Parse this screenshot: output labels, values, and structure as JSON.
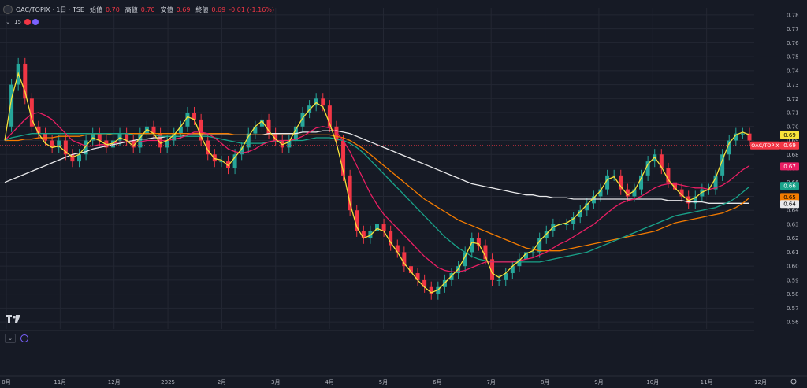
{
  "header": {
    "symbol": "OAC/TOPIX · 1日 · TSE",
    "open_label": "始値",
    "open_value": "0.70",
    "high_label": "高値",
    "high_value": "0.70",
    "low_label": "安値",
    "low_value": "0.69",
    "close_label": "終値",
    "close_value": "0.69",
    "change": "-0.01 (-1.16%)",
    "interval_badge": "15"
  },
  "colors": {
    "background": "#161a25",
    "grid": "#232733",
    "up": "#26a69a",
    "down": "#f23645",
    "ma_yellow": "#f7e23a",
    "ma_pink": "#e91e63",
    "ma_teal": "#19a38a",
    "ma_orange": "#f57c00",
    "ma_white": "#e8e8ea"
  },
  "chart_data": {
    "type": "line",
    "title": "OAC/TOPIX",
    "x_ticks": [
      "0月",
      "11月",
      "12月",
      "2025",
      "2月",
      "3月",
      "4月",
      "5月",
      "6月",
      "7月",
      "8月",
      "9月",
      "10月",
      "11月",
      "12月"
    ],
    "y_ticks": [
      "0.78",
      "0.77",
      "0.76",
      "0.75",
      "0.74",
      "0.73",
      "0.72",
      "0.71",
      "0.70",
      "0.69",
      "0.68",
      "0.67",
      "0.66",
      "0.65",
      "0.64",
      "0.63",
      "0.62",
      "0.61",
      "0.60",
      "0.59",
      "0.58",
      "0.57",
      "0.56"
    ],
    "ylim": [
      0.555,
      0.785
    ],
    "price_labels": [
      {
        "text": "0.69",
        "value": 0.694,
        "color": "#f7e23a",
        "fg": "#000000"
      },
      {
        "text": "OAC/TOPIX",
        "value": 0.6865,
        "color": "#f23645",
        "fg": "#ffffff"
      },
      {
        "text": "0.69",
        "value": 0.6865,
        "color": "#f23645",
        "fg": "#ffffff"
      },
      {
        "text": "0.67",
        "value": 0.6715,
        "color": "#e91e63",
        "fg": "#ffffff"
      },
      {
        "text": "0.66",
        "value": 0.6575,
        "color": "#19a38a",
        "fg": "#ffffff"
      },
      {
        "text": "0.65",
        "value": 0.6495,
        "color": "#f57c00",
        "fg": "#000000"
      },
      {
        "text": "0.64",
        "value": 0.6445,
        "color": "#e8e8ea",
        "fg": "#000000"
      }
    ],
    "close_series": [
      0.7,
      0.73,
      0.745,
      0.72,
      0.7,
      0.695,
      0.69,
      0.685,
      0.69,
      0.68,
      0.675,
      0.68,
      0.69,
      0.695,
      0.69,
      0.685,
      0.69,
      0.695,
      0.69,
      0.685,
      0.695,
      0.7,
      0.695,
      0.685,
      0.69,
      0.695,
      0.7,
      0.71,
      0.705,
      0.69,
      0.68,
      0.675,
      0.675,
      0.67,
      0.68,
      0.685,
      0.695,
      0.7,
      0.705,
      0.695,
      0.69,
      0.685,
      0.69,
      0.7,
      0.71,
      0.715,
      0.72,
      0.715,
      0.7,
      0.69,
      0.665,
      0.64,
      0.625,
      0.62,
      0.625,
      0.63,
      0.625,
      0.615,
      0.61,
      0.6,
      0.595,
      0.59,
      0.585,
      0.58,
      0.585,
      0.59,
      0.595,
      0.6,
      0.61,
      0.62,
      0.615,
      0.605,
      0.59,
      0.59,
      0.595,
      0.6,
      0.605,
      0.61,
      0.61,
      0.62,
      0.625,
      0.63,
      0.63,
      0.63,
      0.635,
      0.64,
      0.645,
      0.65,
      0.655,
      0.665,
      0.665,
      0.655,
      0.65,
      0.655,
      0.665,
      0.675,
      0.68,
      0.67,
      0.66,
      0.655,
      0.65,
      0.645,
      0.65,
      0.655,
      0.655,
      0.665,
      0.68,
      0.69,
      0.695,
      0.695,
      0.69
    ],
    "ma_yellow": [
      0.69,
      0.72,
      0.738,
      0.725,
      0.705,
      0.695,
      0.688,
      0.685,
      0.686,
      0.682,
      0.678,
      0.68,
      0.686,
      0.692,
      0.69,
      0.687,
      0.688,
      0.692,
      0.69,
      0.686,
      0.692,
      0.698,
      0.695,
      0.688,
      0.69,
      0.694,
      0.7,
      0.707,
      0.705,
      0.693,
      0.683,
      0.677,
      0.676,
      0.672,
      0.678,
      0.684,
      0.693,
      0.7,
      0.704,
      0.697,
      0.691,
      0.687,
      0.689,
      0.698,
      0.706,
      0.712,
      0.717,
      0.714,
      0.702,
      0.688,
      0.668,
      0.645,
      0.628,
      0.62,
      0.622,
      0.627,
      0.625,
      0.617,
      0.61,
      0.602,
      0.596,
      0.59,
      0.585,
      0.581,
      0.583,
      0.588,
      0.593,
      0.598,
      0.607,
      0.617,
      0.616,
      0.607,
      0.595,
      0.592,
      0.595,
      0.6,
      0.604,
      0.609,
      0.611,
      0.618,
      0.623,
      0.628,
      0.63,
      0.631,
      0.634,
      0.639,
      0.644,
      0.649,
      0.654,
      0.662,
      0.664,
      0.657,
      0.651,
      0.654,
      0.663,
      0.673,
      0.678,
      0.671,
      0.662,
      0.656,
      0.651,
      0.647,
      0.649,
      0.653,
      0.655,
      0.663,
      0.676,
      0.688,
      0.694,
      0.696,
      0.694
    ],
    "ma_pink": [
      0.69,
      0.695,
      0.7,
      0.705,
      0.709,
      0.71,
      0.708,
      0.705,
      0.7,
      0.695,
      0.69,
      0.688,
      0.686,
      0.686,
      0.687,
      0.687,
      0.688,
      0.689,
      0.689,
      0.689,
      0.689,
      0.69,
      0.69,
      0.69,
      0.69,
      0.691,
      0.692,
      0.694,
      0.696,
      0.696,
      0.695,
      0.692,
      0.688,
      0.684,
      0.682,
      0.681,
      0.682,
      0.684,
      0.687,
      0.689,
      0.69,
      0.69,
      0.69,
      0.691,
      0.693,
      0.696,
      0.699,
      0.7,
      0.699,
      0.696,
      0.69,
      0.682,
      0.672,
      0.662,
      0.652,
      0.644,
      0.637,
      0.632,
      0.627,
      0.622,
      0.617,
      0.612,
      0.607,
      0.603,
      0.599,
      0.597,
      0.596,
      0.596,
      0.597,
      0.599,
      0.601,
      0.603,
      0.603,
      0.603,
      0.603,
      0.603,
      0.604,
      0.605,
      0.606,
      0.608,
      0.61,
      0.613,
      0.616,
      0.618,
      0.621,
      0.624,
      0.627,
      0.63,
      0.634,
      0.638,
      0.642,
      0.645,
      0.647,
      0.648,
      0.65,
      0.653,
      0.656,
      0.658,
      0.659,
      0.659,
      0.658,
      0.657,
      0.656,
      0.656,
      0.655,
      0.656,
      0.658,
      0.661,
      0.665,
      0.669,
      0.672
    ],
    "ma_teal": [
      0.69,
      0.692,
      0.693,
      0.694,
      0.695,
      0.695,
      0.695,
      0.695,
      0.695,
      0.695,
      0.695,
      0.695,
      0.695,
      0.695,
      0.695,
      0.695,
      0.695,
      0.695,
      0.695,
      0.694,
      0.694,
      0.694,
      0.694,
      0.693,
      0.693,
      0.693,
      0.693,
      0.693,
      0.693,
      0.693,
      0.693,
      0.692,
      0.691,
      0.69,
      0.689,
      0.688,
      0.688,
      0.688,
      0.688,
      0.689,
      0.689,
      0.69,
      0.69,
      0.69,
      0.69,
      0.691,
      0.692,
      0.692,
      0.692,
      0.691,
      0.69,
      0.688,
      0.685,
      0.681,
      0.676,
      0.671,
      0.666,
      0.661,
      0.656,
      0.651,
      0.646,
      0.641,
      0.636,
      0.631,
      0.626,
      0.621,
      0.617,
      0.613,
      0.61,
      0.607,
      0.605,
      0.604,
      0.603,
      0.603,
      0.603,
      0.603,
      0.603,
      0.603,
      0.603,
      0.603,
      0.604,
      0.605,
      0.606,
      0.607,
      0.608,
      0.609,
      0.61,
      0.612,
      0.614,
      0.616,
      0.618,
      0.62,
      0.622,
      0.624,
      0.626,
      0.628,
      0.63,
      0.632,
      0.634,
      0.636,
      0.637,
      0.638,
      0.639,
      0.64,
      0.641,
      0.642,
      0.644,
      0.646,
      0.649,
      0.653,
      0.657
    ],
    "ma_orange": [
      0.69,
      0.69,
      0.69,
      0.691,
      0.691,
      0.692,
      0.692,
      0.692,
      0.693,
      0.693,
      0.693,
      0.693,
      0.694,
      0.694,
      0.694,
      0.694,
      0.695,
      0.695,
      0.695,
      0.695,
      0.695,
      0.695,
      0.695,
      0.695,
      0.695,
      0.695,
      0.695,
      0.695,
      0.695,
      0.695,
      0.695,
      0.695,
      0.695,
      0.695,
      0.694,
      0.694,
      0.694,
      0.694,
      0.694,
      0.694,
      0.694,
      0.694,
      0.694,
      0.694,
      0.694,
      0.694,
      0.694,
      0.694,
      0.694,
      0.693,
      0.692,
      0.69,
      0.687,
      0.684,
      0.68,
      0.676,
      0.672,
      0.668,
      0.664,
      0.66,
      0.656,
      0.652,
      0.648,
      0.645,
      0.642,
      0.639,
      0.636,
      0.633,
      0.631,
      0.629,
      0.627,
      0.625,
      0.623,
      0.621,
      0.619,
      0.617,
      0.615,
      0.613,
      0.612,
      0.611,
      0.611,
      0.611,
      0.611,
      0.612,
      0.613,
      0.614,
      0.615,
      0.616,
      0.617,
      0.618,
      0.619,
      0.62,
      0.621,
      0.622,
      0.623,
      0.624,
      0.625,
      0.627,
      0.629,
      0.631,
      0.632,
      0.633,
      0.634,
      0.635,
      0.636,
      0.637,
      0.638,
      0.64,
      0.642,
      0.645,
      0.649
    ],
    "ma_white": [
      0.66,
      0.662,
      0.664,
      0.666,
      0.668,
      0.67,
      0.672,
      0.674,
      0.676,
      0.678,
      0.68,
      0.681,
      0.682,
      0.684,
      0.685,
      0.686,
      0.687,
      0.688,
      0.689,
      0.69,
      0.691,
      0.691,
      0.692,
      0.692,
      0.693,
      0.693,
      0.693,
      0.694,
      0.694,
      0.694,
      0.694,
      0.694,
      0.694,
      0.694,
      0.694,
      0.694,
      0.694,
      0.694,
      0.694,
      0.695,
      0.695,
      0.695,
      0.695,
      0.695,
      0.696,
      0.696,
      0.696,
      0.697,
      0.697,
      0.697,
      0.696,
      0.695,
      0.693,
      0.691,
      0.689,
      0.687,
      0.685,
      0.683,
      0.681,
      0.679,
      0.677,
      0.675,
      0.673,
      0.671,
      0.669,
      0.667,
      0.665,
      0.663,
      0.661,
      0.659,
      0.658,
      0.657,
      0.656,
      0.655,
      0.654,
      0.653,
      0.652,
      0.651,
      0.651,
      0.65,
      0.65,
      0.649,
      0.649,
      0.649,
      0.648,
      0.648,
      0.648,
      0.648,
      0.648,
      0.648,
      0.648,
      0.648,
      0.648,
      0.648,
      0.648,
      0.648,
      0.648,
      0.648,
      0.647,
      0.647,
      0.647,
      0.646,
      0.646,
      0.646,
      0.645,
      0.645,
      0.645,
      0.645,
      0.645,
      0.645,
      0.645
    ]
  }
}
